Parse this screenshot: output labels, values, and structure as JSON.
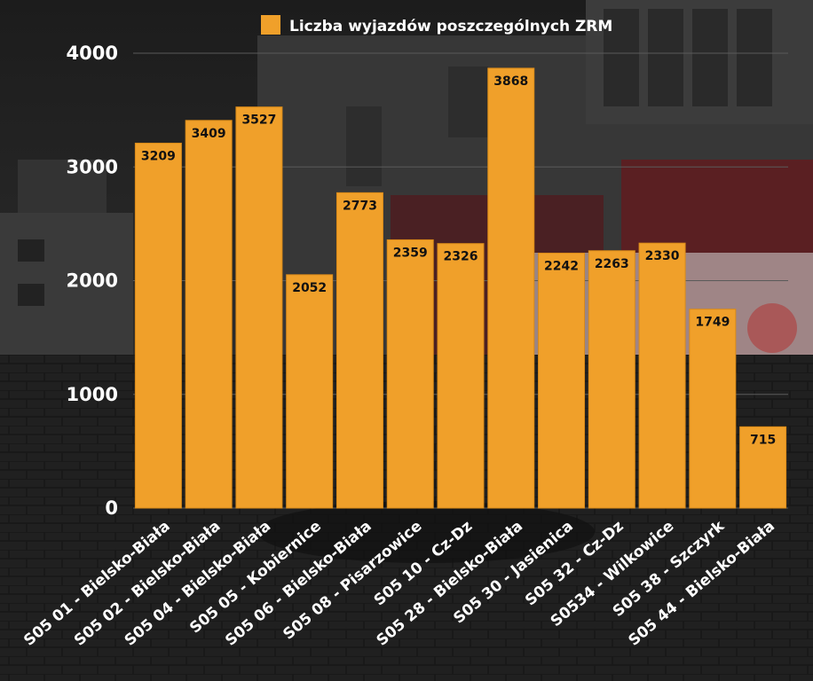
{
  "colors": {
    "bar": "#f0a02a",
    "gridline": "#5a5a5a",
    "axis_text": "#ffffff",
    "data_label_bg": "#f0a02a",
    "data_label_text": "#111111"
  },
  "chart_data": {
    "type": "bar",
    "categories": [
      "S05 01 - Bielsko-Biała",
      "S05 02 - Bielsko-Biała",
      "S05 04 - Bielsko-Biała",
      "S05 05 - Kobiernice",
      "S05 06 - Bielsko-Biała",
      "S05 08 - Pisarzowice",
      "S05 10 - Cz-Dz",
      "S05 28 - Bielsko-Biała",
      "S05 30 - Jasienica",
      "S05 32 - Cz-Dz",
      "S0534 - Wilkowice",
      "S05 38 - Szczyrk",
      "S05 44 - Bielsko-Biała"
    ],
    "series": [
      {
        "name": "Liczba wyjazdów poszczególnych ZRM",
        "values": [
          3209,
          3409,
          3527,
          2052,
          2773,
          2359,
          2326,
          3868,
          2242,
          2263,
          2330,
          1749,
          715
        ]
      }
    ],
    "ylim": [
      0,
      4000
    ],
    "yticks": [
      "0",
      "1000",
      "2000",
      "3000",
      "4000"
    ],
    "grid": true,
    "legend_position": "top"
  }
}
